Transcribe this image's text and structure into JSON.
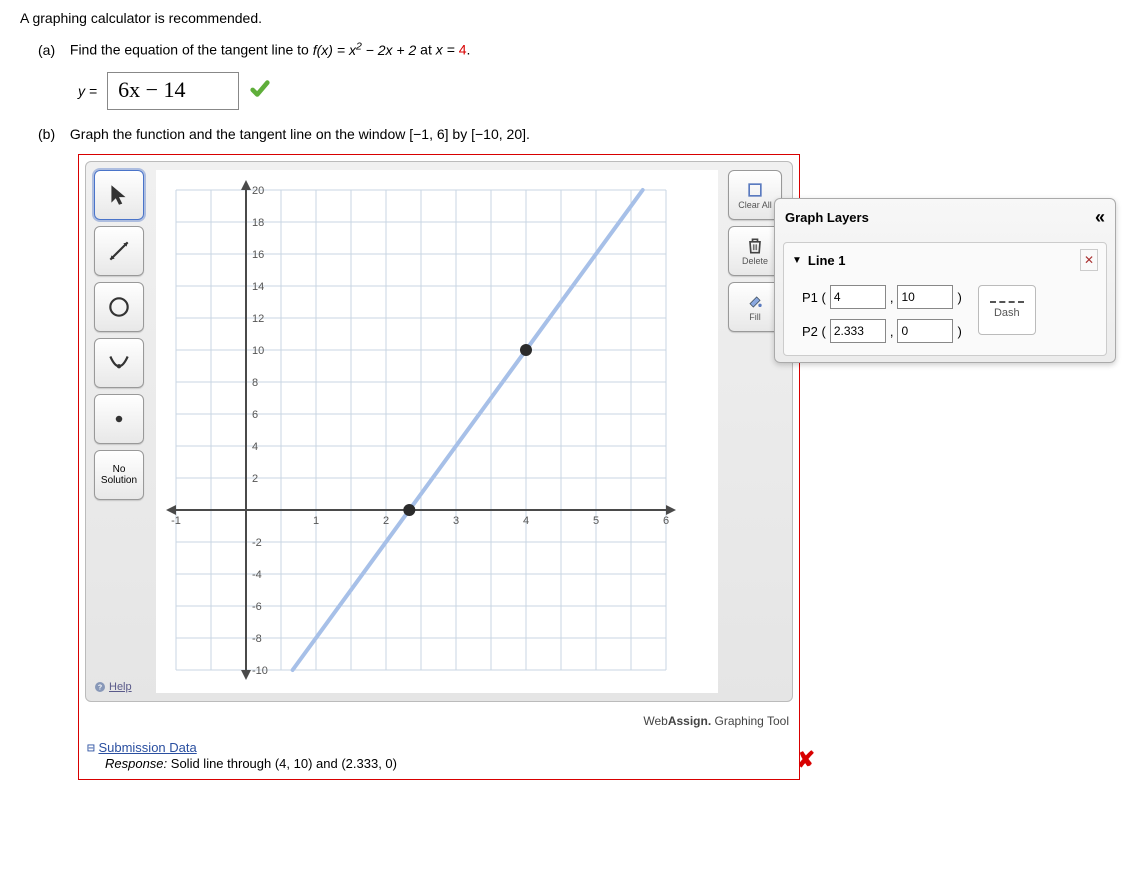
{
  "intro": "A graphing calculator is recommended.",
  "part_a": {
    "label": "(a)",
    "prompt_prefix": "Find the equation of the tangent line to ",
    "func_lhs": "f(x)",
    "func_rhs_1": "x",
    "func_rhs_2": " − 2x + 2",
    "at_text": " at ",
    "x_eq": "x",
    "x_val": "4",
    "y_eq": "y =",
    "answer": "6x − 14"
  },
  "part_b": {
    "label": "(b)",
    "prompt": "Graph the function and the tangent line on the window [−1, 6] by [−10, 20]."
  },
  "tools": {
    "no_solution": "No\nSolution",
    "help": "Help"
  },
  "actions": {
    "clear_all": "Clear All",
    "delete": "Delete",
    "fill": "Fill"
  },
  "chart": {
    "type": "line",
    "background_color": "#ffffff",
    "grid_color": "#c9d6e3",
    "axis_color": "#4a4a4a",
    "xlim": [
      -1,
      6
    ],
    "ylim": [
      -10,
      20
    ],
    "xtick_step": 1,
    "ytick_step": 2,
    "x_minor_subdiv": 2,
    "y_minor_subdiv": 1,
    "line_series": {
      "p1": [
        4,
        10
      ],
      "p2": [
        2.333,
        0
      ],
      "color": "#a7c0e8",
      "width": 4,
      "point_color": "#2b2b2b",
      "point_radius": 6
    },
    "x_tick_labels": [
      "-1",
      "1",
      "2",
      "3",
      "4",
      "5",
      "6"
    ],
    "y_tick_labels": [
      "20",
      "18",
      "16",
      "14",
      "12",
      "10",
      "8",
      "6",
      "4",
      "2",
      "-2",
      "-4",
      "-6",
      "-8",
      "-10"
    ]
  },
  "brand": {
    "web": "Web",
    "assign": "Assign.",
    "tail": " Graphing Tool"
  },
  "submission": {
    "toggle": "⊟",
    "title": "Submission Data",
    "response_label": "Response:",
    "response": "Solid line through (4, 10) and (2.333, 0)"
  },
  "layers": {
    "title": "Graph Layers",
    "collapse": "«",
    "item_name": "Line 1",
    "close": "✕",
    "p1_label": "P1 (",
    "p2_label": "P2 (",
    "p1": {
      "x": "4",
      "y": "10"
    },
    "p2": {
      "x": "2.333",
      "y": "0"
    },
    "comma": ",",
    "close_paren": ")",
    "dash": "Dash"
  }
}
